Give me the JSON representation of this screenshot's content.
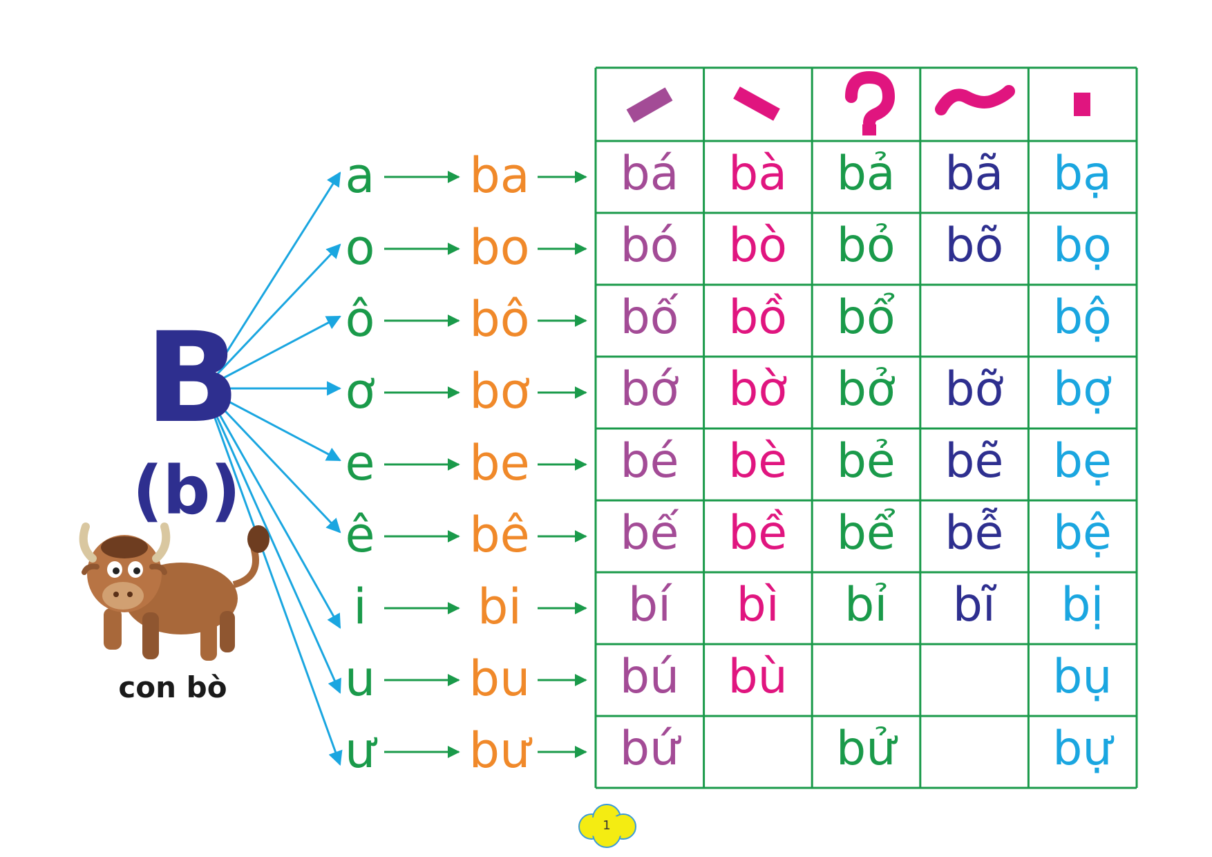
{
  "letter": {
    "upper": "B",
    "lower": "(b)"
  },
  "picture": {
    "caption": "con bò",
    "icon": "ox-icon"
  },
  "vowels": [
    "a",
    "o",
    "ô",
    "ơ",
    "e",
    "ê",
    "i",
    "u",
    "ư"
  ],
  "syllables": [
    "ba",
    "bo",
    "bô",
    "bơ",
    "be",
    "bê",
    "bi",
    "bu",
    "bư"
  ],
  "tone_marks": [
    "sắc",
    "huyền",
    "hỏi",
    "ngã",
    "nặng"
  ],
  "tone_colors": [
    "#a34b96",
    "#e0157f",
    "#1a9a4a",
    "#2e2f8f",
    "#1aa6e0"
  ],
  "table_rows": [
    [
      "bá",
      "bà",
      "bả",
      "bã",
      "bạ"
    ],
    [
      "bó",
      "bò",
      "bỏ",
      "bõ",
      "bọ"
    ],
    [
      "bố",
      "bồ",
      "bổ",
      "",
      "bộ"
    ],
    [
      "bớ",
      "bờ",
      "bở",
      "bỡ",
      "bợ"
    ],
    [
      "bé",
      "bè",
      "bẻ",
      "bẽ",
      "bẹ"
    ],
    [
      "bế",
      "bề",
      "bể",
      "bễ",
      "bệ"
    ],
    [
      "bí",
      "bì",
      "bỉ",
      "bĩ",
      "bị"
    ],
    [
      "bú",
      "bù",
      "",
      "",
      "bụ"
    ],
    [
      "bứ",
      "",
      "bử",
      "",
      "bự"
    ]
  ],
  "page_number": "1"
}
